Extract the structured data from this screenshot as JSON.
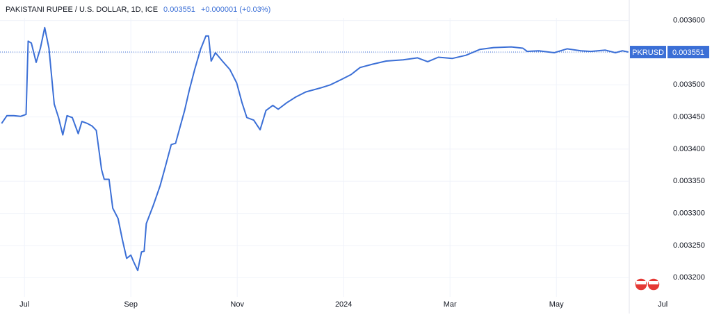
{
  "chart_data": {
    "type": "line",
    "title": "PAKISTANI RUPEE / U.S. DOLLAR, 1D, ICE",
    "last_price": 0.003551,
    "change": "+0.000001 (+0.03%)",
    "grid": true,
    "xlim": [
      -0.46,
      11.37
    ],
    "xticks": [
      {
        "value": 0,
        "label": "Jul"
      },
      {
        "value": 2,
        "label": "Sep"
      },
      {
        "value": 4,
        "label": "Nov"
      },
      {
        "value": 6,
        "label": "2024"
      },
      {
        "value": 8,
        "label": "Mar"
      },
      {
        "value": 10,
        "label": "May"
      },
      {
        "value": 12,
        "label": "Jul"
      }
    ],
    "ylim": [
      0.00317,
      0.003632
    ],
    "yticks": [
      {
        "value": 0.0032,
        "label": "0.003200"
      },
      {
        "value": 0.00325,
        "label": "0.003250"
      },
      {
        "value": 0.0033,
        "label": "0.003300"
      },
      {
        "value": 0.00335,
        "label": "0.003350"
      },
      {
        "value": 0.0034,
        "label": "0.003400"
      },
      {
        "value": 0.00345,
        "label": "0.003450"
      },
      {
        "value": 0.0035,
        "label": "0.003500"
      },
      {
        "value": 0.00355,
        "label": "0.003550"
      },
      {
        "value": 0.0036,
        "label": "0.003600"
      }
    ],
    "series": [
      {
        "name": "PKRUSD",
        "color": "#3b6fd6",
        "x": [
          -0.43,
          -0.33,
          -0.2,
          -0.07,
          0.03,
          0.07,
          0.13,
          0.22,
          0.3,
          0.38,
          0.46,
          0.56,
          0.64,
          0.72,
          0.8,
          0.9,
          1.01,
          1.08,
          1.18,
          1.27,
          1.35,
          1.45,
          1.5,
          1.59,
          1.66,
          1.76,
          1.84,
          1.92,
          2.0,
          2.05,
          2.13,
          2.2,
          2.25,
          2.29,
          2.42,
          2.55,
          2.65,
          2.76,
          2.84,
          2.92,
          3.01,
          3.1,
          3.2,
          3.31,
          3.41,
          3.46,
          3.51,
          3.59,
          3.72,
          3.86,
          3.99,
          4.09,
          4.18,
          4.31,
          4.43,
          4.54,
          4.67,
          4.77,
          4.93,
          5.1,
          5.29,
          5.56,
          5.75,
          5.95,
          6.14,
          6.31,
          6.54,
          6.8,
          7.12,
          7.39,
          7.58,
          7.78,
          8.04,
          8.3,
          8.56,
          8.82,
          9.15,
          9.37,
          9.45,
          9.67,
          9.96,
          10.2,
          10.46,
          10.65,
          10.92,
          11.11,
          11.24,
          11.35
        ],
        "values": [
          0.00344,
          0.003452,
          0.003452,
          0.003451,
          0.003454,
          0.003568,
          0.003565,
          0.003535,
          0.003557,
          0.003589,
          0.003557,
          0.00347,
          0.003449,
          0.003422,
          0.003452,
          0.003449,
          0.003424,
          0.003443,
          0.00344,
          0.003436,
          0.003429,
          0.003368,
          0.003353,
          0.003353,
          0.003308,
          0.003292,
          0.003259,
          0.00323,
          0.003235,
          0.003225,
          0.003211,
          0.00324,
          0.003241,
          0.003284,
          0.003312,
          0.003343,
          0.003373,
          0.003407,
          0.003409,
          0.003433,
          0.00346,
          0.003492,
          0.003524,
          0.003555,
          0.003576,
          0.003576,
          0.003537,
          0.00355,
          0.003537,
          0.003524,
          0.003503,
          0.003472,
          0.003449,
          0.003445,
          0.00343,
          0.00346,
          0.003468,
          0.003462,
          0.003472,
          0.003481,
          0.003489,
          0.003495,
          0.0035,
          0.003508,
          0.003516,
          0.003527,
          0.003532,
          0.003537,
          0.003539,
          0.003542,
          0.003536,
          0.003543,
          0.003541,
          0.003546,
          0.003555,
          0.003558,
          0.003559,
          0.003557,
          0.003552,
          0.003553,
          0.00355,
          0.003556,
          0.003553,
          0.003552,
          0.003554,
          0.00355,
          0.003553,
          0.003551
        ]
      }
    ]
  }
}
